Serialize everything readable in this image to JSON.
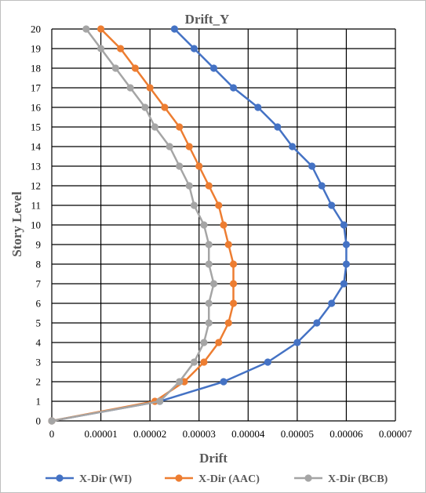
{
  "chart_data": {
    "type": "line",
    "title": "Drift_Y",
    "xlabel": "Drift",
    "ylabel": "Story Level",
    "xlim": [
      0,
      7e-05
    ],
    "ylim": [
      0,
      20
    ],
    "x_ticks": [
      "0",
      "0.00001",
      "0.00002",
      "0.00003",
      "0.00004",
      "0.00005",
      "0.00006",
      "0.00007"
    ],
    "y_ticks": [
      "0",
      "1",
      "2",
      "3",
      "4",
      "5",
      "6",
      "7",
      "8",
      "9",
      "10",
      "11",
      "12",
      "13",
      "14",
      "15",
      "16",
      "17",
      "18",
      "19",
      "20"
    ],
    "grid": true,
    "legend_position": "bottom",
    "series": [
      {
        "name": "X-Dir (WI)",
        "color": "#4472c4",
        "points": [
          [
            0,
            0
          ],
          [
            2.2e-05,
            1
          ],
          [
            3.5e-05,
            2
          ],
          [
            4.4e-05,
            3
          ],
          [
            5e-05,
            4
          ],
          [
            5.4e-05,
            5
          ],
          [
            5.7e-05,
            6
          ],
          [
            5.95e-05,
            7
          ],
          [
            6e-05,
            8
          ],
          [
            6e-05,
            9
          ],
          [
            5.95e-05,
            10
          ],
          [
            5.7e-05,
            11
          ],
          [
            5.5e-05,
            12
          ],
          [
            5.3e-05,
            13
          ],
          [
            4.9e-05,
            14
          ],
          [
            4.6e-05,
            15
          ],
          [
            4.2e-05,
            16
          ],
          [
            3.7e-05,
            17
          ],
          [
            3.3e-05,
            18
          ],
          [
            2.9e-05,
            19
          ],
          [
            2.5e-05,
            20
          ]
        ]
      },
      {
        "name": "X-Dir (AAC)",
        "color": "#ed7d31",
        "points": [
          [
            0,
            0
          ],
          [
            2.1e-05,
            1
          ],
          [
            2.7e-05,
            2
          ],
          [
            3.1e-05,
            3
          ],
          [
            3.4e-05,
            4
          ],
          [
            3.6e-05,
            5
          ],
          [
            3.7e-05,
            6
          ],
          [
            3.7e-05,
            7
          ],
          [
            3.7e-05,
            8
          ],
          [
            3.6e-05,
            9
          ],
          [
            3.5e-05,
            10
          ],
          [
            3.4e-05,
            11
          ],
          [
            3.2e-05,
            12
          ],
          [
            3e-05,
            13
          ],
          [
            2.8e-05,
            14
          ],
          [
            2.6e-05,
            15
          ],
          [
            2.3e-05,
            16
          ],
          [
            2e-05,
            17
          ],
          [
            1.7e-05,
            18
          ],
          [
            1.4e-05,
            19
          ],
          [
            1e-05,
            20
          ]
        ]
      },
      {
        "name": "X-Dir (BCB)",
        "color": "#a5a5a5",
        "points": [
          [
            0,
            0
          ],
          [
            2.2e-05,
            1
          ],
          [
            2.6e-05,
            2
          ],
          [
            2.9e-05,
            3
          ],
          [
            3.1e-05,
            4
          ],
          [
            3.2e-05,
            5
          ],
          [
            3.2e-05,
            6
          ],
          [
            3.3e-05,
            7
          ],
          [
            3.2e-05,
            8
          ],
          [
            3.2e-05,
            9
          ],
          [
            3.1e-05,
            10
          ],
          [
            2.9e-05,
            11
          ],
          [
            2.8e-05,
            12
          ],
          [
            2.6e-05,
            13
          ],
          [
            2.4e-05,
            14
          ],
          [
            2.1e-05,
            15
          ],
          [
            1.9e-05,
            16
          ],
          [
            1.6e-05,
            17
          ],
          [
            1.3e-05,
            18
          ],
          [
            1e-05,
            19
          ],
          [
            7e-06,
            20
          ]
        ]
      }
    ]
  }
}
